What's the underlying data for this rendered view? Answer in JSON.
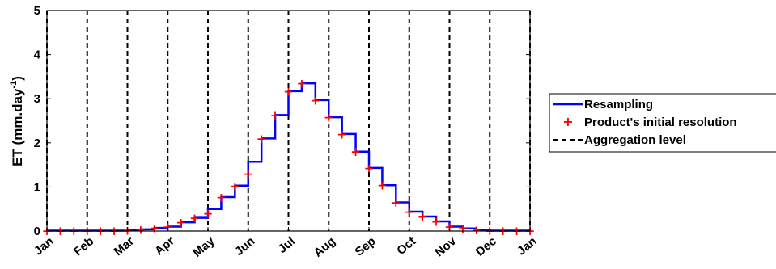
{
  "chart_data": {
    "type": "line",
    "title": "",
    "xlabel": "",
    "ylabel": "ET (mm.day",
    "ylabel_superscript": "-1",
    "ylabel_suffix": ")",
    "ylim": [
      0,
      5
    ],
    "yticks": [
      "0",
      "1",
      "2",
      "3",
      "4",
      "5"
    ],
    "x_tick_labels": [
      "Jan",
      "Feb",
      "Mar",
      "Apr",
      "May",
      "Jun",
      "Jul",
      "Aug",
      "Sep",
      "Oct",
      "Nov",
      "Dec",
      "Jan"
    ],
    "grid": false,
    "legend_position": "right",
    "series": [
      {
        "name": "Resampling",
        "style": "solid-step",
        "color": "#0000ff",
        "step_edges_month": [
          0,
          0.33,
          0.67,
          1,
          1.33,
          1.67,
          2,
          2.33,
          2.67,
          3,
          3.33,
          3.67,
          4,
          4.33,
          4.67,
          5,
          5.33,
          5.67,
          6,
          6.33,
          6.67,
          7,
          7.33,
          7.67,
          8,
          8.33,
          8.67,
          9,
          9.33,
          9.67,
          10,
          10.33,
          10.67,
          11,
          11.33,
          11.67,
          12
        ],
        "values": [
          0.01,
          0.01,
          0.01,
          0.01,
          0.01,
          0.01,
          0.02,
          0.04,
          0.07,
          0.1,
          0.2,
          0.3,
          0.5,
          0.77,
          1.03,
          1.57,
          2.1,
          2.63,
          3.17,
          3.35,
          2.97,
          2.58,
          2.2,
          1.8,
          1.43,
          1.04,
          0.65,
          0.44,
          0.33,
          0.22,
          0.1,
          0.06,
          0.03,
          0.01,
          0.01,
          0.01
        ]
      },
      {
        "name": "Product's initial resolution",
        "style": "plus-markers",
        "color": "#ff0000",
        "x_month": [
          0,
          0.33,
          0.67,
          1,
          1.33,
          1.67,
          2,
          2.33,
          2.67,
          3,
          3.33,
          3.67,
          4,
          4.33,
          4.67,
          5,
          5.33,
          5.67,
          6,
          6.33,
          6.67,
          7,
          7.33,
          7.67,
          8,
          8.33,
          8.67,
          9,
          9.33,
          9.67,
          10,
          10.33,
          10.67,
          11,
          11.33,
          11.67,
          12
        ],
        "values": [
          0.01,
          0.01,
          0.01,
          0.01,
          0.01,
          0.01,
          0.02,
          0.04,
          0.07,
          0.1,
          0.2,
          0.3,
          0.4,
          0.77,
          1.03,
          1.3,
          2.1,
          2.63,
          3.17,
          3.35,
          2.97,
          2.58,
          2.2,
          1.8,
          1.43,
          1.04,
          0.65,
          0.44,
          0.33,
          0.22,
          0.1,
          0.06,
          0.03,
          0.01,
          0.01,
          0.01,
          0.01
        ]
      },
      {
        "name": "Aggregation level",
        "style": "dashed-vertical",
        "color": "#000000",
        "x_month": [
          0,
          1,
          2,
          3,
          4,
          5,
          6,
          7,
          8,
          9,
          10,
          11,
          12
        ]
      }
    ]
  }
}
